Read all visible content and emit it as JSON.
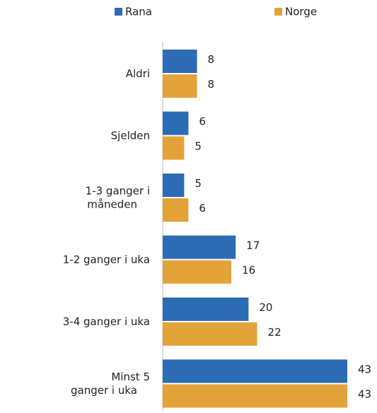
{
  "chart_data": {
    "type": "barh",
    "categories": [
      "Aldri",
      "Sjelden",
      "1-3 ganger i måneden",
      "1-2 ganger i uka",
      "3-4 ganger i uka",
      "Minst 5 ganger i uka"
    ],
    "series": [
      {
        "name": "Rana",
        "color": "#2b6cb5",
        "values": [
          8,
          6,
          5,
          17,
          20,
          43
        ]
      },
      {
        "name": "Norge",
        "color": "#e3a33a",
        "values": [
          8,
          5,
          6,
          16,
          22,
          43
        ]
      }
    ],
    "legend": "top"
  }
}
